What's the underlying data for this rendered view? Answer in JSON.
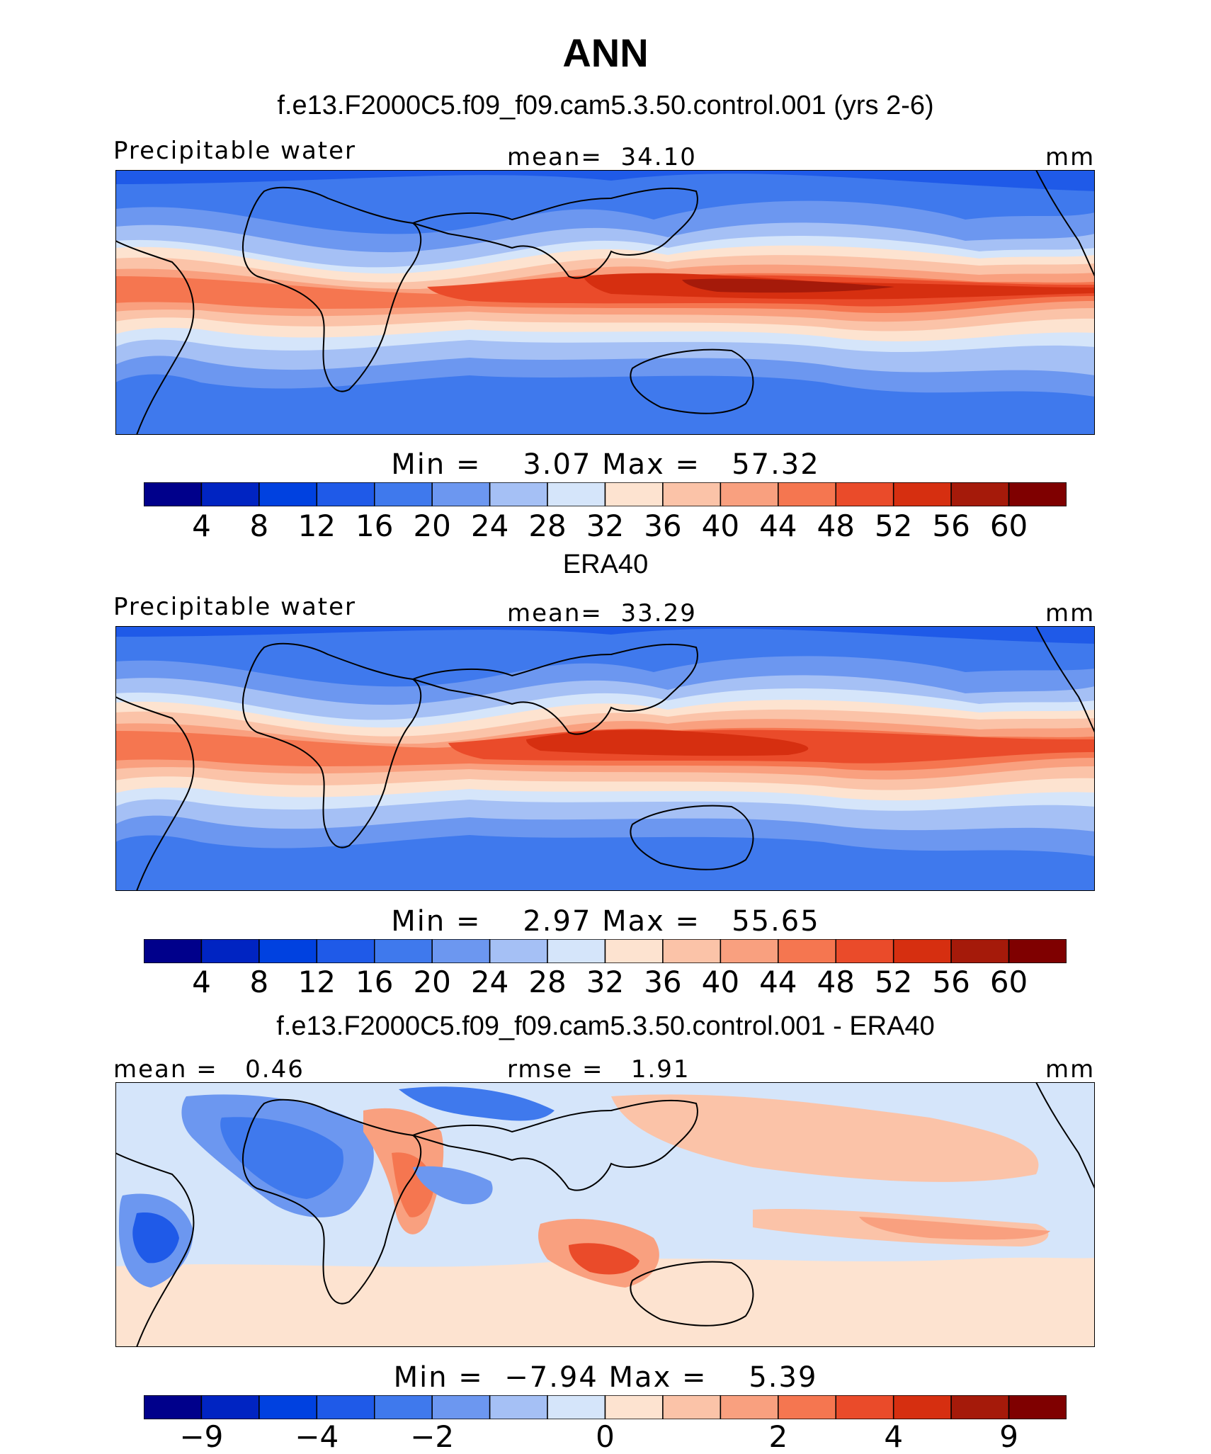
{
  "main_title": "ANN",
  "scale": {
    "colors": [
      "#00008b",
      "#0024c2",
      "#0041e0",
      "#1f5ae8",
      "#3f79ed",
      "#6c97f0",
      "#a5c0f5",
      "#d5e5fa",
      "#fde3d0",
      "#fbc3a8",
      "#f9a07f",
      "#f57650",
      "#ea4b2a",
      "#d62f10",
      "#a51a0a",
      "#7f0000"
    ]
  },
  "panels": [
    {
      "title": "f.e13.F2000C5.f09_f09.cam5.3.50.control.001 (yrs 2-6)",
      "left_label": "Precipitable water",
      "center_label": "mean=  34.10",
      "right_label": "mm",
      "minmax": "Min =    3.07 Max =   57.32",
      "ticks": [
        "4",
        "8",
        "12",
        "16",
        "20",
        "24",
        "28",
        "32",
        "36",
        "40",
        "44",
        "48",
        "52",
        "56",
        "60"
      ]
    },
    {
      "title": "ERA40",
      "left_label": "Precipitable water",
      "center_label": "mean=  33.29",
      "right_label": "mm",
      "minmax": "Min =    2.97 Max =   55.65",
      "ticks": [
        "4",
        "8",
        "12",
        "16",
        "20",
        "24",
        "28",
        "32",
        "36",
        "40",
        "44",
        "48",
        "52",
        "56",
        "60"
      ]
    },
    {
      "title": "f.e13.F2000C5.f09_f09.cam5.3.50.control.001 - ERA40",
      "left_label": "mean =   0.46",
      "center_label": "rmse =   1.91",
      "right_label": "mm",
      "minmax": "Min =  −7.94 Max =    5.39",
      "ticks": [
        "−9",
        "−4",
        "−2",
        "0",
        "2",
        "4",
        "9"
      ]
    }
  ]
}
